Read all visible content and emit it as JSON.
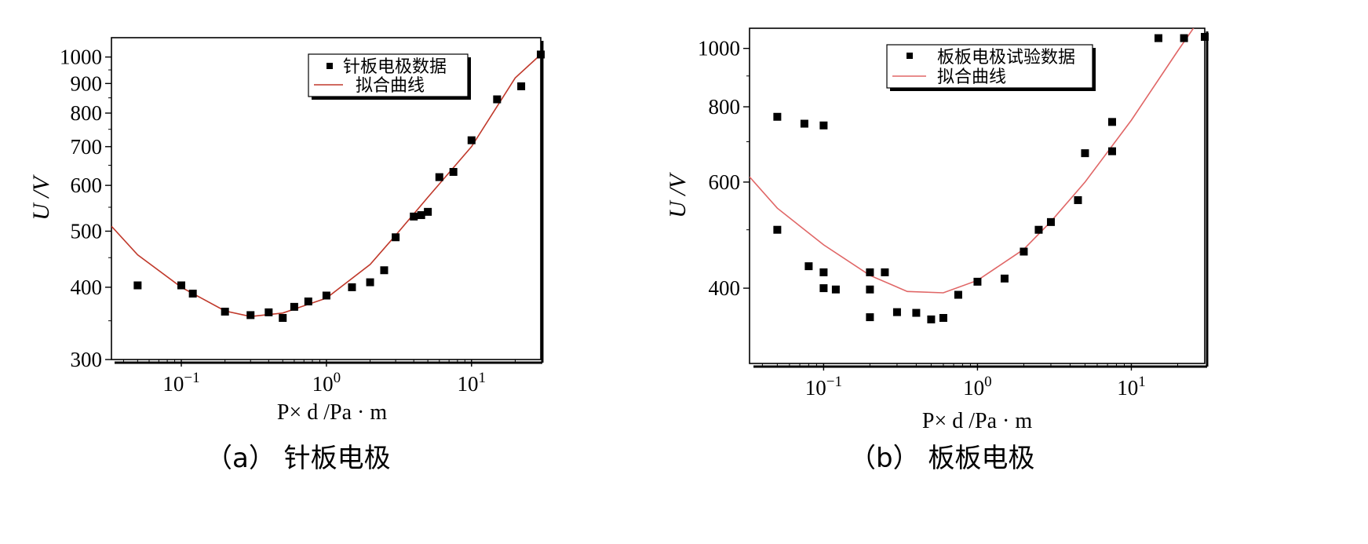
{
  "figure": {
    "panels": [
      {
        "caption": "（a） 针板电极",
        "ylabel": "U /V",
        "xlabel": "P× d /Pa · m",
        "legend": {
          "marker_label": "针板电极数据",
          "line_label": "拟合曲线"
        },
        "y_ticks": [
          "300",
          "400",
          "500",
          "600",
          "700",
          "800",
          "900",
          "1000"
        ],
        "x_ticks": [
          {
            "base": "10",
            "exp": "−1"
          },
          {
            "base": "10",
            "exp": "0"
          },
          {
            "base": "10",
            "exp": "1"
          }
        ]
      },
      {
        "caption": "（b） 板板电极",
        "ylabel": "U /V",
        "xlabel": "P× d /Pa · m",
        "legend": {
          "marker_label": "板板电极试验数据",
          "line_label": "拟合曲线"
        },
        "y_ticks": [
          "400",
          "600",
          "800",
          "1000"
        ],
        "x_ticks": [
          {
            "base": "10",
            "exp": "−1"
          },
          {
            "base": "10",
            "exp": "0"
          },
          {
            "base": "10",
            "exp": "1"
          }
        ]
      }
    ]
  },
  "chart_data": [
    {
      "type": "scatter",
      "title": "",
      "caption": "（a） 针板电极",
      "xlabel": "P× d /Pa · m",
      "ylabel": "U /V",
      "x_scale": "log",
      "y_scale": "log",
      "xlim": [
        0.033,
        30
      ],
      "ylim": [
        300,
        1080
      ],
      "grid": false,
      "legend_position": "top-right",
      "marker_color": "#000000",
      "fit_color": "#c0392b",
      "series": [
        {
          "name": "针板电极数据",
          "kind": "scatter",
          "x": [
            0.05,
            0.1,
            0.12,
            0.2,
            0.3,
            0.4,
            0.5,
            0.6,
            0.75,
            1.0,
            1.5,
            2.0,
            2.5,
            3.0,
            4.0,
            4.5,
            5.0,
            6.0,
            7.5,
            10,
            15,
            22,
            30
          ],
          "y": [
            403,
            403,
            390,
            363,
            358,
            362,
            354,
            370,
            378,
            387,
            400,
            408,
            428,
            488,
            530,
            533,
            540,
            620,
            633,
            718,
            845,
            890,
            1010
          ]
        },
        {
          "name": "拟合曲线",
          "kind": "line",
          "x": [
            0.033,
            0.05,
            0.1,
            0.2,
            0.3,
            0.5,
            1.0,
            2.0,
            3.0,
            5.0,
            10,
            20,
            30
          ],
          "y": [
            510,
            455,
            400,
            364,
            356,
            361,
            383,
            438,
            492,
            572,
            700,
            920,
            1010
          ]
        }
      ]
    },
    {
      "type": "scatter",
      "title": "",
      "caption": "（b） 板板电极",
      "xlabel": "P× d /Pa · m",
      "ylabel": "U /V",
      "x_scale": "log",
      "y_scale": "log",
      "xlim": [
        0.033,
        30
      ],
      "ylim": [
        300,
        1080
      ],
      "grid": false,
      "legend_position": "top-right",
      "marker_color": "#000000",
      "fit_color": "#e06666",
      "series": [
        {
          "name": "板板电极试验数据",
          "kind": "scatter",
          "x": [
            0.05,
            0.05,
            0.075,
            0.08,
            0.1,
            0.1,
            0.1,
            0.12,
            0.2,
            0.2,
            0.2,
            0.25,
            0.3,
            0.4,
            0.5,
            0.6,
            0.75,
            1.0,
            1.5,
            2.0,
            2.5,
            3.0,
            4.5,
            5.0,
            7.5,
            7.5,
            15,
            22,
            30
          ],
          "y": [
            770,
            500,
            750,
            435,
            745,
            400,
            425,
            398,
            425,
            398,
            358,
            425,
            365,
            364,
            355,
            357,
            390,
            410,
            415,
            460,
            500,
            515,
            560,
            670,
            675,
            755,
            1040,
            1040,
            1045
          ]
        },
        {
          "name": "拟合曲线",
          "kind": "line",
          "x": [
            0.033,
            0.05,
            0.1,
            0.2,
            0.35,
            0.6,
            1.0,
            2.0,
            3.0,
            5.0,
            10,
            20,
            30
          ],
          "y": [
            612,
            543,
            472,
            420,
            395,
            393,
            412,
            464,
            516,
            600,
            760,
            990,
            1150
          ]
        }
      ]
    }
  ]
}
